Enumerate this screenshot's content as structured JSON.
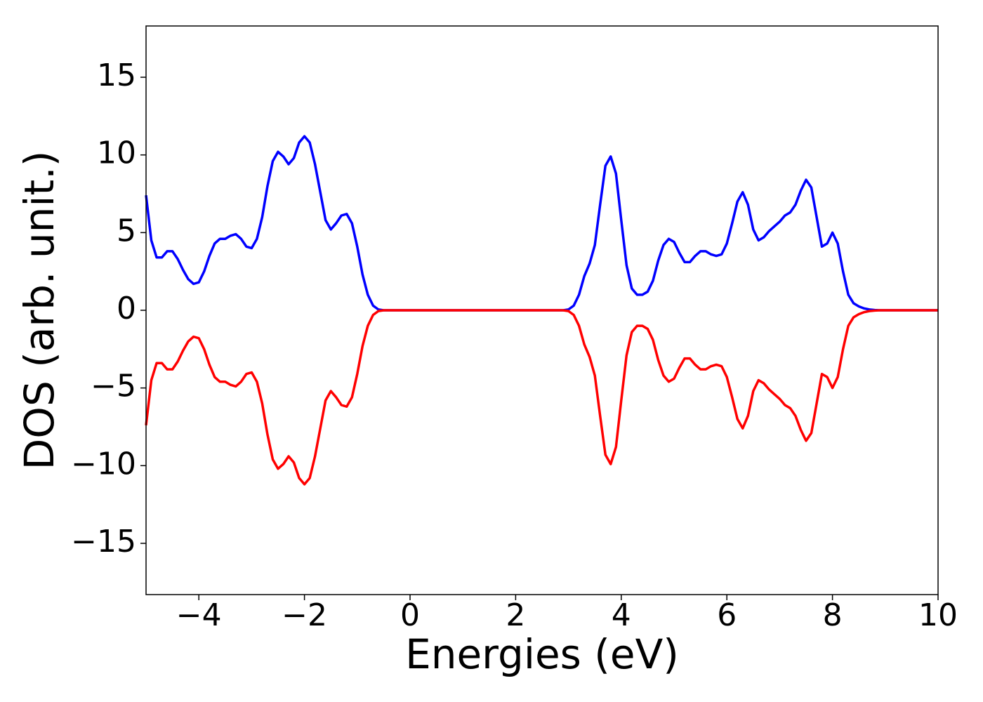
{
  "chart_data": {
    "type": "line",
    "x_label": "Energies (eV)",
    "y_label": "DOS (arb. unit.)",
    "x": [
      -5,
      -4.9,
      -4.8,
      -4.7,
      -4.6,
      -4.5,
      -4.4,
      -4.3,
      -4.2,
      -4.1,
      -4,
      -3.9,
      -3.8,
      -3.7,
      -3.6,
      -3.5,
      -3.4,
      -3.3,
      -3.2,
      -3.1,
      -3,
      -2.9,
      -2.8,
      -2.7,
      -2.6,
      -2.5,
      -2.4,
      -2.3,
      -2.2,
      -2.1,
      -2,
      -1.9,
      -1.8,
      -1.7,
      -1.6,
      -1.5,
      -1.4,
      -1.3,
      -1.2,
      -1.1,
      -1,
      -0.9,
      -0.8,
      -0.7,
      -0.6,
      -0.5,
      0,
      1,
      2,
      2.9,
      3,
      3.1,
      3.2,
      3.3,
      3.4,
      3.5,
      3.6,
      3.7,
      3.8,
      3.9,
      4,
      4.1,
      4.2,
      4.3,
      4.4,
      4.5,
      4.6,
      4.7,
      4.8,
      4.9,
      5,
      5.1,
      5.2,
      5.3,
      5.4,
      5.5,
      5.6,
      5.7,
      5.8,
      5.9,
      6,
      6.1,
      6.2,
      6.3,
      6.4,
      6.5,
      6.6,
      6.7,
      6.8,
      6.9,
      7,
      7.1,
      7.2,
      7.3,
      7.4,
      7.5,
      7.6,
      7.7,
      7.8,
      7.9,
      8,
      8.1,
      8.2,
      8.3,
      8.4,
      8.5,
      8.6,
      8.7,
      8.8,
      8.9,
      10
    ],
    "series": [
      {
        "color": "#0000ff",
        "values": [
          7.4,
          4.5,
          3.4,
          3.4,
          3.8,
          3.8,
          3.3,
          2.6,
          2.0,
          1.7,
          1.8,
          2.5,
          3.5,
          4.3,
          4.6,
          4.6,
          4.8,
          4.9,
          4.6,
          4.1,
          4.0,
          4.6,
          6.0,
          8.0,
          9.6,
          10.2,
          9.9,
          9.4,
          9.8,
          10.8,
          11.2,
          10.8,
          9.4,
          7.6,
          5.8,
          5.2,
          5.6,
          6.1,
          6.2,
          5.6,
          4.1,
          2.3,
          1.0,
          0.3,
          0.05,
          0,
          0,
          0,
          0,
          0,
          0.05,
          0.3,
          1.0,
          2.2,
          3.0,
          4.2,
          6.8,
          9.3,
          9.9,
          8.8,
          5.8,
          2.9,
          1.4,
          1.0,
          1.0,
          1.2,
          1.9,
          3.2,
          4.2,
          4.6,
          4.4,
          3.7,
          3.1,
          3.1,
          3.5,
          3.8,
          3.8,
          3.6,
          3.5,
          3.6,
          4.3,
          5.6,
          7.0,
          7.6,
          6.8,
          5.2,
          4.5,
          4.7,
          5.1,
          5.4,
          5.7,
          6.1,
          6.3,
          6.8,
          7.7,
          8.4,
          7.9,
          6.0,
          4.1,
          4.3,
          5.0,
          4.3,
          2.5,
          1.0,
          0.45,
          0.25,
          0.12,
          0.05,
          0.02,
          0,
          0
        ]
      },
      {
        "color": "#ff0000",
        "values": [
          -7.4,
          -4.5,
          -3.4,
          -3.4,
          -3.8,
          -3.8,
          -3.3,
          -2.6,
          -2.0,
          -1.7,
          -1.8,
          -2.5,
          -3.5,
          -4.3,
          -4.6,
          -4.6,
          -4.8,
          -4.9,
          -4.6,
          -4.1,
          -4.0,
          -4.6,
          -6.0,
          -8.0,
          -9.6,
          -10.2,
          -9.9,
          -9.4,
          -9.8,
          -10.8,
          -11.2,
          -10.8,
          -9.4,
          -7.6,
          -5.8,
          -5.2,
          -5.6,
          -6.1,
          -6.2,
          -5.6,
          -4.1,
          -2.3,
          -1.0,
          -0.3,
          -0.05,
          0,
          0,
          0,
          0,
          0,
          -0.05,
          -0.3,
          -1.0,
          -2.2,
          -3.0,
          -4.2,
          -6.8,
          -9.3,
          -9.9,
          -8.8,
          -5.8,
          -2.9,
          -1.4,
          -1.0,
          -1.0,
          -1.2,
          -1.9,
          -3.2,
          -4.2,
          -4.6,
          -4.4,
          -3.7,
          -3.1,
          -3.1,
          -3.5,
          -3.8,
          -3.8,
          -3.6,
          -3.5,
          -3.6,
          -4.3,
          -5.6,
          -7.0,
          -7.6,
          -6.8,
          -5.2,
          -4.5,
          -4.7,
          -5.1,
          -5.4,
          -5.7,
          -6.1,
          -6.3,
          -6.8,
          -7.7,
          -8.4,
          -7.9,
          -6.0,
          -4.1,
          -4.3,
          -5.0,
          -4.3,
          -2.5,
          -1.0,
          -0.45,
          -0.25,
          -0.12,
          -0.05,
          -0.02,
          0,
          0
        ]
      }
    ],
    "xlim": [
      -5,
      10
    ],
    "ylim": [
      -18.3,
      18.3
    ],
    "xticks": [
      {
        "value": -4,
        "label": "−4"
      },
      {
        "value": -2,
        "label": "−2"
      },
      0,
      2,
      4,
      6,
      8,
      10
    ],
    "yticks": [
      {
        "value": -15,
        "label": "−15"
      },
      {
        "value": -10,
        "label": "−10"
      },
      {
        "value": -5,
        "label": "−5"
      },
      0,
      5,
      10,
      15
    ],
    "grid": false
  }
}
